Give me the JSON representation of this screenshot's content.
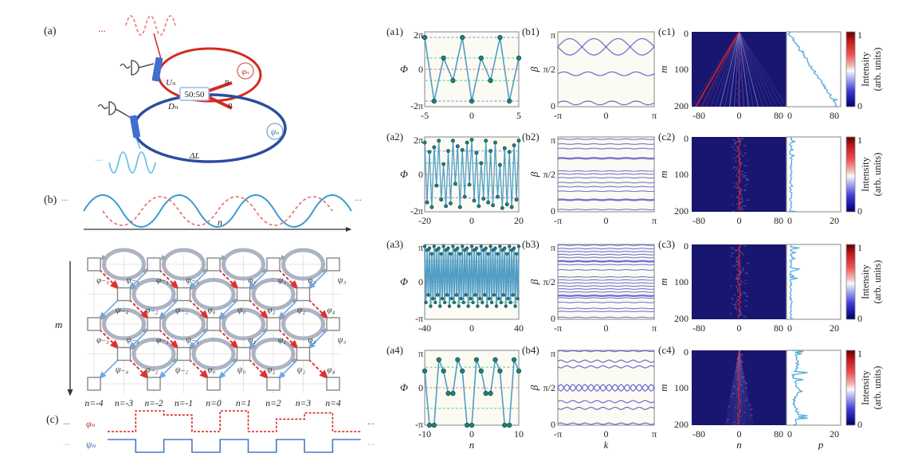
{
  "left_diagram": {
    "a_label": "(a)",
    "b_label": "(b)",
    "c_label": "(c)",
    "dots": "...",
    "coupler_label": "50:50",
    "phi_mod_label": "φₙ",
    "psi_mod_label": "ψₙ",
    "u_label": "Uₙ",
    "d_label": "Dₙ",
    "n_upper": "n",
    "n_lower": "n",
    "delta_l_label": "ΔL",
    "wave_axis_label": "n",
    "m_axis_label": "m",
    "lattice_odd_labels": [
      "φ₋₃",
      "ψ₋₃",
      "φ₋₁",
      "ψ₋₁",
      "φ₁",
      "ψ₁",
      "φ₃",
      "ψ₃"
    ],
    "lattice_even_labels": [
      "ψ₋₄",
      "φ₋₂",
      "ψ₋₂",
      "φ₀",
      "ψ₀",
      "φ₂",
      "ψ₂",
      "φ₄"
    ],
    "n_axis_labels": [
      "n=-4",
      "n=-3",
      "n=-2",
      "n=-1",
      "n=0",
      "n=1",
      "n=2",
      "n=3",
      "n=4"
    ],
    "phi_wave_label": "φₙ",
    "psi_wave_label": "ψₙ",
    "phi_levels": [
      0,
      1,
      0.8,
      0,
      1,
      0,
      0.6,
      0.9,
      0
    ],
    "psi_levels": [
      1,
      0,
      1,
      0,
      1,
      0,
      1,
      0,
      1
    ]
  },
  "chart_data": [
    {
      "id": "a1",
      "type": "line",
      "label": "(a1)",
      "ylabel": "Φ",
      "yticks": [
        "2π",
        "0",
        "-2π"
      ],
      "ylim": 2,
      "xticks": [
        "-5",
        "0",
        "5"
      ],
      "xmin": -5,
      "xmax": 5,
      "values": [
        1.7,
        -1.7,
        0.6,
        -0.6,
        1.7,
        -1.7,
        0.6,
        -0.6,
        1.7,
        -1.7,
        0.6
      ],
      "guides": [
        {
          "y": 1.7,
          "c": "blue"
        },
        {
          "y": 0.6,
          "c": "green"
        },
        {
          "y": 0,
          "c": "red"
        },
        {
          "y": -0.6,
          "c": "green"
        },
        {
          "y": -1.7,
          "c": "blue"
        }
      ]
    },
    {
      "id": "b1",
      "type": "bands",
      "label": "(b1)",
      "ylabel": "β",
      "yticks": [
        "π",
        "π/2",
        "0"
      ],
      "xticks": [
        "-π",
        "0",
        "π"
      ],
      "bands": [
        {
          "c": 0.8,
          "a": 0.11,
          "f": 2,
          "p": 0
        },
        {
          "c": 0.8,
          "a": 0.11,
          "f": 2,
          "p": 3.1416
        },
        {
          "c": 0.44,
          "a": 0.025,
          "f": 4,
          "p": 0
        },
        {
          "c": 0.05,
          "a": 0.025,
          "f": 4,
          "p": 0
        }
      ]
    },
    {
      "id": "c1",
      "type": "heatmap",
      "label": "(c1)",
      "ylabel": "m",
      "yticks": [
        "0",
        "100",
        "200"
      ],
      "xticks": [
        "-80",
        "0",
        "80"
      ],
      "side_xticks": [
        "0",
        "80"
      ],
      "pattern": "cone",
      "cone_halfwidth": 95,
      "side": "diagonal",
      "colorbar_ticks": [
        "1",
        "0"
      ],
      "cb_label1": "Intensity",
      "cb_label2": "(arb. units)"
    },
    {
      "id": "a2",
      "type": "line",
      "label": "(a2)",
      "ylabel": "Φ",
      "yticks": [
        "2π",
        "0",
        "-2π"
      ],
      "ylim": 2,
      "xticks": [
        "-20",
        "0",
        "20"
      ],
      "xmin": -20,
      "xmax": 20,
      "values": [
        1.7,
        -1.5,
        1.2,
        -1.75,
        1.45,
        -0.6,
        1.8,
        -1.35,
        0.55,
        -1.7,
        1.25,
        -1.55,
        1.8,
        -0.5,
        1.5,
        -1.75,
        1.3,
        -1.2,
        1.7,
        -0.55,
        1.85,
        -1.4,
        1.15,
        -1.7,
        0.6,
        -1.3,
        1.8,
        -1.5,
        1.25,
        -1.65,
        1.7,
        -1.2,
        0.5,
        -1.8,
        1.4,
        -1.6,
        1.2,
        -1.75,
        1.55,
        -1.35,
        1.8
      ],
      "guides": [
        {
          "y": 1.25,
          "c": "blue"
        },
        {
          "y": 0.6,
          "c": "green"
        },
        {
          "y": 0,
          "c": "red"
        },
        {
          "y": -0.6,
          "c": "green"
        },
        {
          "y": -1.25,
          "c": "blue"
        }
      ]
    },
    {
      "id": "b2",
      "type": "bands",
      "label": "(b2)",
      "ylabel": "β",
      "yticks": [
        "π",
        "π/2",
        "0"
      ],
      "xticks": [
        "-π",
        "0",
        "π"
      ],
      "flats": [
        0.97,
        0.905,
        0.845,
        0.715,
        0.545,
        0.505,
        0.455,
        0.39,
        0.335,
        0.275,
        0.16,
        0.03
      ],
      "thick": [
        0.715,
        0.16
      ]
    },
    {
      "id": "c2",
      "type": "heatmap",
      "label": "(c2)",
      "ylabel": "m",
      "yticks": [
        "0",
        "100",
        "200"
      ],
      "xticks": [
        "-80",
        "0",
        "80"
      ],
      "side_xticks": [
        "0",
        "20"
      ],
      "pattern": "localized",
      "cone_halfwidth": 8,
      "side": "vertical-small",
      "colorbar_ticks": [
        "1",
        "0"
      ],
      "cb_label1": "Intensity",
      "cb_label2": "(arb. units)"
    },
    {
      "id": "a3",
      "type": "line",
      "label": "(a3)",
      "ylabel": "Φ",
      "yticks": [
        "π",
        "0",
        "-π"
      ],
      "ylim": 1,
      "xticks": [
        "-40",
        "0",
        "40"
      ],
      "xmin": -40,
      "xmax": 40,
      "values": [
        0.95,
        -0.55,
        0.85,
        -0.35,
        0.9,
        -0.65,
        0.75,
        -0.45,
        0.95,
        -0.55,
        0.85,
        -0.35,
        0.9,
        -0.65,
        0.75,
        -0.45,
        0.95,
        -0.55,
        0.85,
        -0.35,
        0.9,
        -0.65,
        0.75,
        -0.45,
        0.95,
        -0.55,
        0.85,
        -0.35,
        0.9,
        -0.65,
        0.75,
        -0.45,
        0.95,
        -0.55,
        0.85,
        -0.35,
        0.9,
        -0.65,
        0.75,
        -0.45,
        0.95,
        -0.55,
        0.85,
        -0.35,
        0.9,
        -0.65,
        0.75,
        -0.45,
        0.95,
        -0.55,
        0.85,
        -0.35,
        0.9,
        -0.65,
        0.75,
        -0.45,
        0.95,
        -0.55,
        0.85,
        -0.35,
        0.9,
        -0.65,
        0.75,
        -0.45,
        0.95,
        -0.55,
        0.85,
        -0.35,
        0.9,
        -0.65,
        0.75,
        -0.45,
        0.95,
        -0.55,
        0.85,
        -0.35,
        0.9,
        -0.65,
        0.75,
        -0.45,
        0.95
      ],
      "guides": [
        {
          "y": 0.55,
          "c": "green"
        },
        {
          "y": 0,
          "c": "red"
        },
        {
          "y": -0.55,
          "c": "green"
        }
      ]
    },
    {
      "id": "b3",
      "type": "bands",
      "label": "(b3)",
      "ylabel": "β",
      "yticks": [
        "π",
        "π/2",
        "0"
      ],
      "xticks": [
        "-π",
        "0",
        "π"
      ],
      "flats": [
        0.99,
        0.945,
        0.905,
        0.865,
        0.825,
        0.775,
        0.73,
        0.66,
        0.565,
        0.525,
        0.485,
        0.445,
        0.405,
        0.365,
        0.315,
        0.285,
        0.225,
        0.145,
        0.105,
        0.025
      ],
      "thick": [
        0.775,
        0.315
      ]
    },
    {
      "id": "c3",
      "type": "heatmap",
      "label": "(c3)",
      "ylabel": "m",
      "yticks": [
        "0",
        "100",
        "200"
      ],
      "xticks": [
        "-80",
        "0",
        "80"
      ],
      "side_xticks": [
        "0",
        "20"
      ],
      "pattern": "localized",
      "cone_halfwidth": 10,
      "side": "vertical-spiky",
      "colorbar_ticks": [
        "1",
        "0"
      ],
      "cb_label1": "Intensity",
      "cb_label2": "(arb. units)"
    },
    {
      "id": "a4",
      "type": "line",
      "label": "(a4)",
      "ylabel": "Φ",
      "yticks": [
        "π",
        "0",
        "-π"
      ],
      "ylim": 1,
      "xticks": [
        "-10",
        "0",
        "10"
      ],
      "xmin": -10,
      "xmax": 10,
      "xlabel": "n",
      "values": [
        0.45,
        -1,
        -1,
        0.75,
        0.45,
        -0.15,
        -0.15,
        0.75,
        0.45,
        -1,
        -1,
        0.75,
        0.45,
        -0.15,
        -0.15,
        0.75,
        0.45,
        -1,
        -1,
        0.75,
        0.45
      ],
      "guides": [
        {
          "y": 0.55,
          "c": "green"
        },
        {
          "y": 0,
          "c": "red"
        },
        {
          "y": -0.55,
          "c": "green"
        }
      ]
    },
    {
      "id": "b4",
      "type": "bands",
      "label": "(b4)",
      "ylabel": "β",
      "yticks": [
        "π",
        "π/2",
        "0"
      ],
      "xticks": [
        "-π",
        "0",
        "π"
      ],
      "xlabel": "k",
      "bands": [
        {
          "c": 0.99,
          "a": 0.006,
          "f": 8,
          "p": 0
        },
        {
          "c": 0.855,
          "a": 0.015,
          "f": 8,
          "p": 0
        },
        {
          "c": 0.78,
          "a": 0.015,
          "f": 8,
          "p": 3.14
        },
        {
          "c": 0.5,
          "a": 0.045,
          "f": 8,
          "p": 0
        },
        {
          "c": 0.5,
          "a": 0.045,
          "f": 8,
          "p": 3.1416
        },
        {
          "c": 0.315,
          "a": 0.015,
          "f": 8,
          "p": 0
        },
        {
          "c": 0.225,
          "a": 0.015,
          "f": 8,
          "p": 3.14
        },
        {
          "c": 0.02,
          "a": 0.01,
          "f": 8,
          "p": 0
        }
      ]
    },
    {
      "id": "c4",
      "type": "heatmap",
      "label": "(c4)",
      "ylabel": "m",
      "yticks": [
        "0",
        "100",
        "200"
      ],
      "xticks": [
        "-80",
        "0",
        "80"
      ],
      "side_xticks": [
        "0",
        "20"
      ],
      "pattern": "cone-narrow",
      "cone_halfwidth": 28,
      "side": "wander",
      "xlabel_heat": "n",
      "xlabel_side": "p",
      "colorbar_ticks": [
        "1",
        "0"
      ],
      "cb_label1": "Intensity",
      "cb_label2": "(arb. units)"
    }
  ],
  "colors": {
    "red": "#d42a1e",
    "blue": "#2a4da0",
    "coupler_blue": "#3f6fd0",
    "pink": "#ee8890",
    "light_blue": "#6cc2e8",
    "line": "#3f93c0",
    "marker": "#1e8858",
    "guide_blue": "#8888ee",
    "guide_green": "#55cc77",
    "guide_red": "#ee7777",
    "band": "#5c5ccc",
    "heat_bg": "#191670",
    "heat_red": "#cf2020",
    "heat_light": "#7d7dd8",
    "trace": "#55aadc",
    "panel_bg": "#fbfbf4",
    "axis_gray": "#999999"
  }
}
